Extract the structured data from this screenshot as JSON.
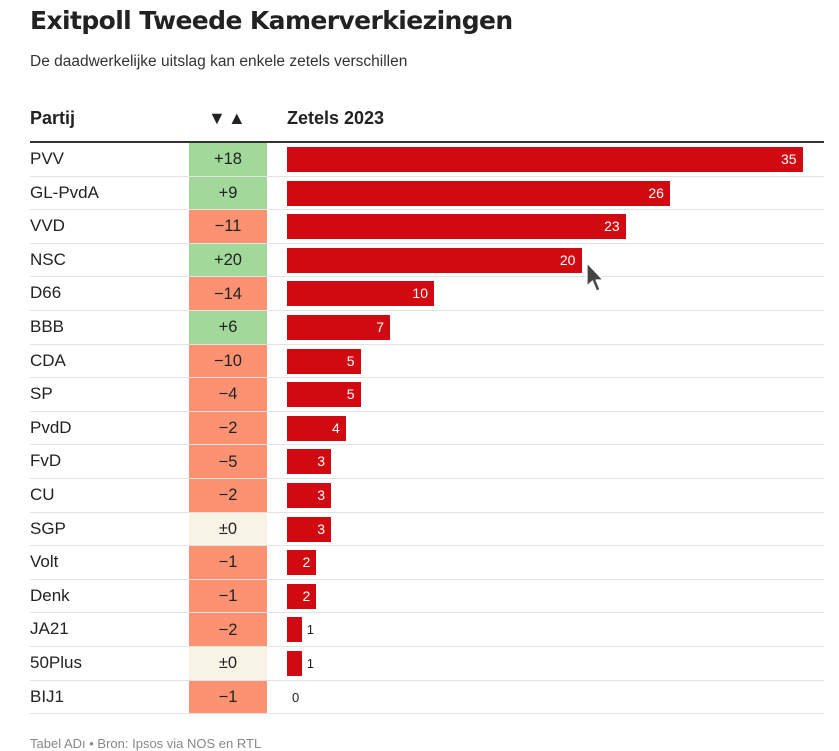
{
  "title": "Exitpoll Tweede Kamerverkiezingen",
  "subtitle": "De daadwerkelijke uitslag kan enkele zetels verschillen",
  "table": {
    "col_party": "Partij",
    "col_sort": "▼▲",
    "col_seats": "Zetels 2023"
  },
  "footer": "Tabel ADı • Bron: Ipsos via NOS en RTL",
  "colors": {
    "bar": "#d10a11",
    "gain": "#a1d99b",
    "loss": "#fc9272",
    "neutral": "#f7f4e6"
  },
  "chart_data": {
    "type": "bar",
    "orientation": "horizontal",
    "title": "Exitpoll Tweede Kamerverkiezingen",
    "subtitle": "De daadwerkelijke uitslag kan enkele zetels verschillen",
    "max_value": 35,
    "rows": [
      {
        "party": "PVV",
        "change": "+18",
        "change_value": 18,
        "seats": 35
      },
      {
        "party": "GL-PvdA",
        "change": "+9",
        "change_value": 9,
        "seats": 26
      },
      {
        "party": "VVD",
        "change": "−11",
        "change_value": -11,
        "seats": 23
      },
      {
        "party": "NSC",
        "change": "+20",
        "change_value": 20,
        "seats": 20
      },
      {
        "party": "D66",
        "change": "−14",
        "change_value": -14,
        "seats": 10
      },
      {
        "party": "BBB",
        "change": "+6",
        "change_value": 6,
        "seats": 7
      },
      {
        "party": "CDA",
        "change": "−10",
        "change_value": -10,
        "seats": 5
      },
      {
        "party": "SP",
        "change": "−4",
        "change_value": -4,
        "seats": 5
      },
      {
        "party": "PvdD",
        "change": "−2",
        "change_value": -2,
        "seats": 4
      },
      {
        "party": "FvD",
        "change": "−5",
        "change_value": -5,
        "seats": 3
      },
      {
        "party": "CU",
        "change": "−2",
        "change_value": -2,
        "seats": 3
      },
      {
        "party": "SGP",
        "change": "±0",
        "change_value": 0,
        "seats": 3
      },
      {
        "party": "Volt",
        "change": "−1",
        "change_value": -1,
        "seats": 2
      },
      {
        "party": "Denk",
        "change": "−1",
        "change_value": -1,
        "seats": 2
      },
      {
        "party": "JA21",
        "change": "−2",
        "change_value": -2,
        "seats": 1
      },
      {
        "party": "50Plus",
        "change": "±0",
        "change_value": 0,
        "seats": 1
      },
      {
        "party": "BIJ1",
        "change": "−1",
        "change_value": -1,
        "seats": 0
      }
    ]
  }
}
